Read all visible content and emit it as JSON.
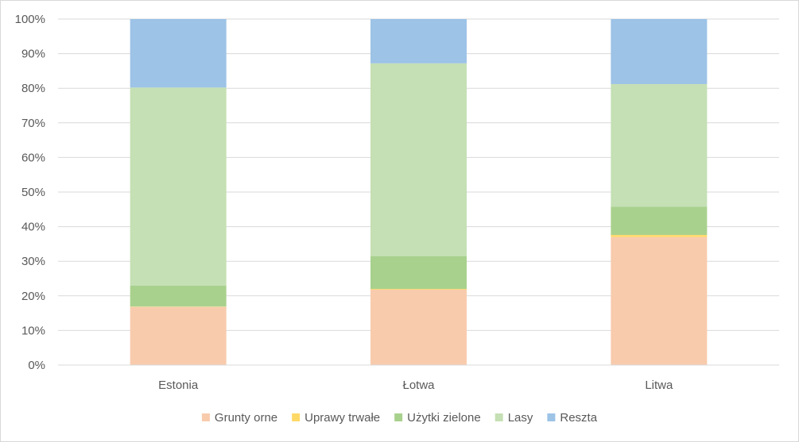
{
  "chart_data": {
    "type": "bar",
    "stacked": true,
    "percent": true,
    "categories": [
      "Estonia",
      "Łotwa",
      "Litwa"
    ],
    "series": [
      {
        "name": "Grunty orne",
        "color": "#f8cbad",
        "values": [
          16.8,
          21.8,
          37.0
        ]
      },
      {
        "name": "Uprawy trwałe",
        "color": "#ffd966",
        "values": [
          0.1,
          0.2,
          0.6
        ]
      },
      {
        "name": "Użytki zielone",
        "color": "#a9d18e",
        "values": [
          6.1,
          9.5,
          8.2
        ]
      },
      {
        "name": "Lasy",
        "color": "#c5e0b4",
        "values": [
          57.2,
          55.7,
          35.4
        ]
      },
      {
        "name": "Reszta",
        "color": "#9dc3e6",
        "values": [
          19.8,
          12.8,
          18.8
        ]
      }
    ],
    "yticks": [
      "0%",
      "10%",
      "20%",
      "30%",
      "40%",
      "50%",
      "60%",
      "70%",
      "80%",
      "90%",
      "100%"
    ],
    "ylim": [
      0,
      100
    ],
    "grid": true,
    "legend": "bottom"
  }
}
